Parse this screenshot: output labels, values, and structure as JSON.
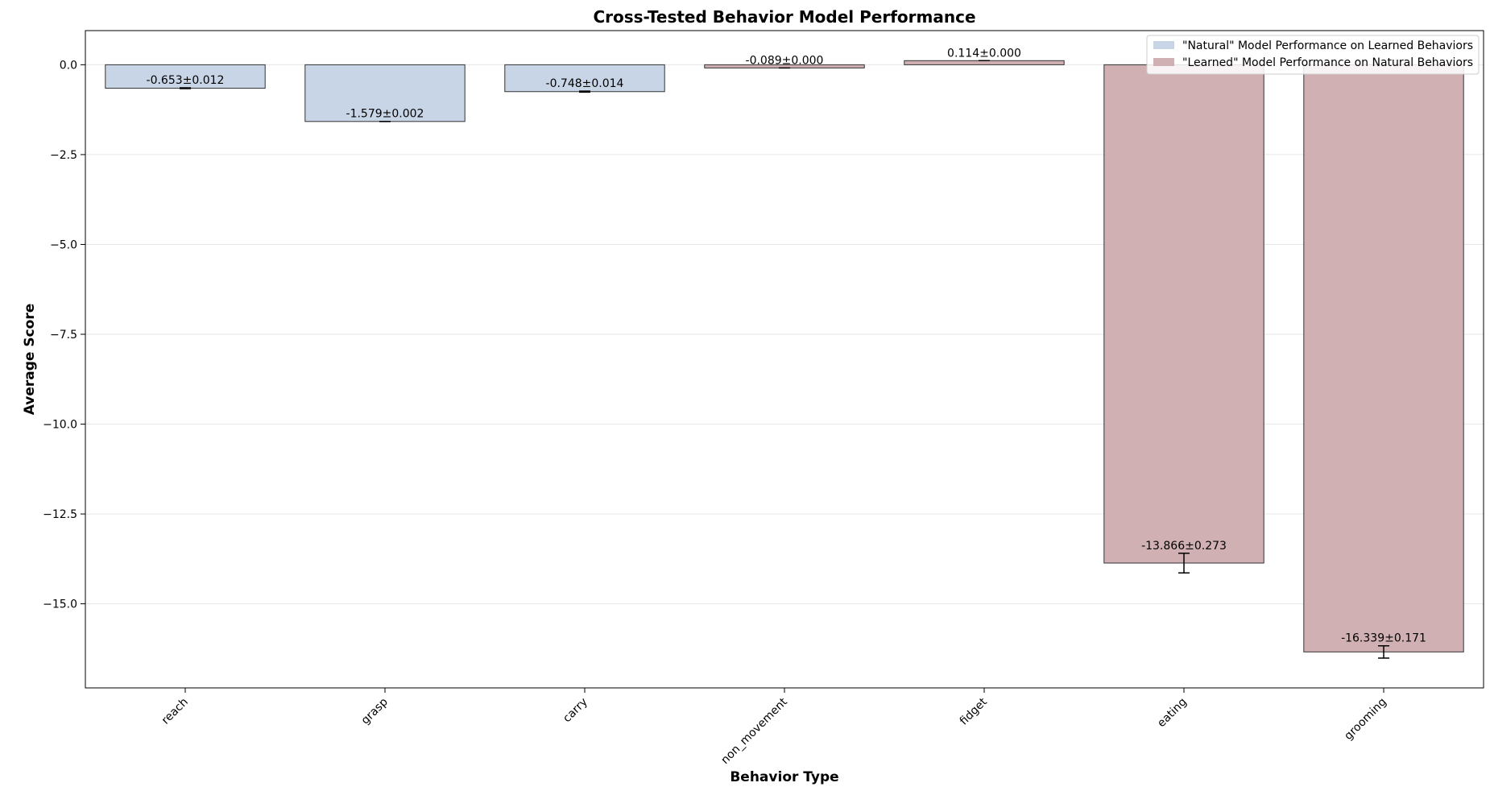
{
  "chart_data": {
    "type": "bar",
    "title": "Cross-Tested Behavior Model Performance",
    "xlabel": "Behavior Type",
    "ylabel": "Average Score",
    "categories": [
      "reach",
      "grasp",
      "carry",
      "non_movement",
      "fidget",
      "eating",
      "grooming"
    ],
    "series": [
      {
        "name": "\"Natural\" Model Performance on Learned Behaviors",
        "color": "#c8d5e6",
        "values": [
          -0.653,
          -1.579,
          -0.748,
          null,
          null,
          null,
          null
        ],
        "errors": [
          0.012,
          0.002,
          0.014,
          null,
          null,
          null,
          null
        ],
        "value_labels": [
          "-0.653±0.012",
          "-1.579±0.002",
          "-0.748±0.014",
          null,
          null,
          null,
          null
        ]
      },
      {
        "name": "\"Learned\" Model Performance on Natural Behaviors",
        "color": "#d0b0b2",
        "values": [
          null,
          null,
          null,
          -0.089,
          0.114,
          -13.866,
          -16.339
        ],
        "errors": [
          null,
          null,
          null,
          0.0,
          0.0,
          0.273,
          0.171
        ],
        "value_labels": [
          null,
          null,
          null,
          "-0.089±0.000",
          "0.114±0.000",
          "-13.866±0.273",
          "-16.339±0.171"
        ]
      }
    ],
    "ylim": [
      -17.34,
      0.95
    ],
    "yticks": [
      {
        "value": 0,
        "label": "0.0"
      },
      {
        "value": -2.5,
        "label": "−2.5"
      },
      {
        "value": -5,
        "label": "−5.0"
      },
      {
        "value": -7.5,
        "label": "−7.5"
      },
      {
        "value": -10,
        "label": "−10.0"
      },
      {
        "value": -12.5,
        "label": "−12.5"
      },
      {
        "value": -15,
        "label": "−15.0"
      }
    ],
    "grid": true,
    "legend": "upper right"
  }
}
